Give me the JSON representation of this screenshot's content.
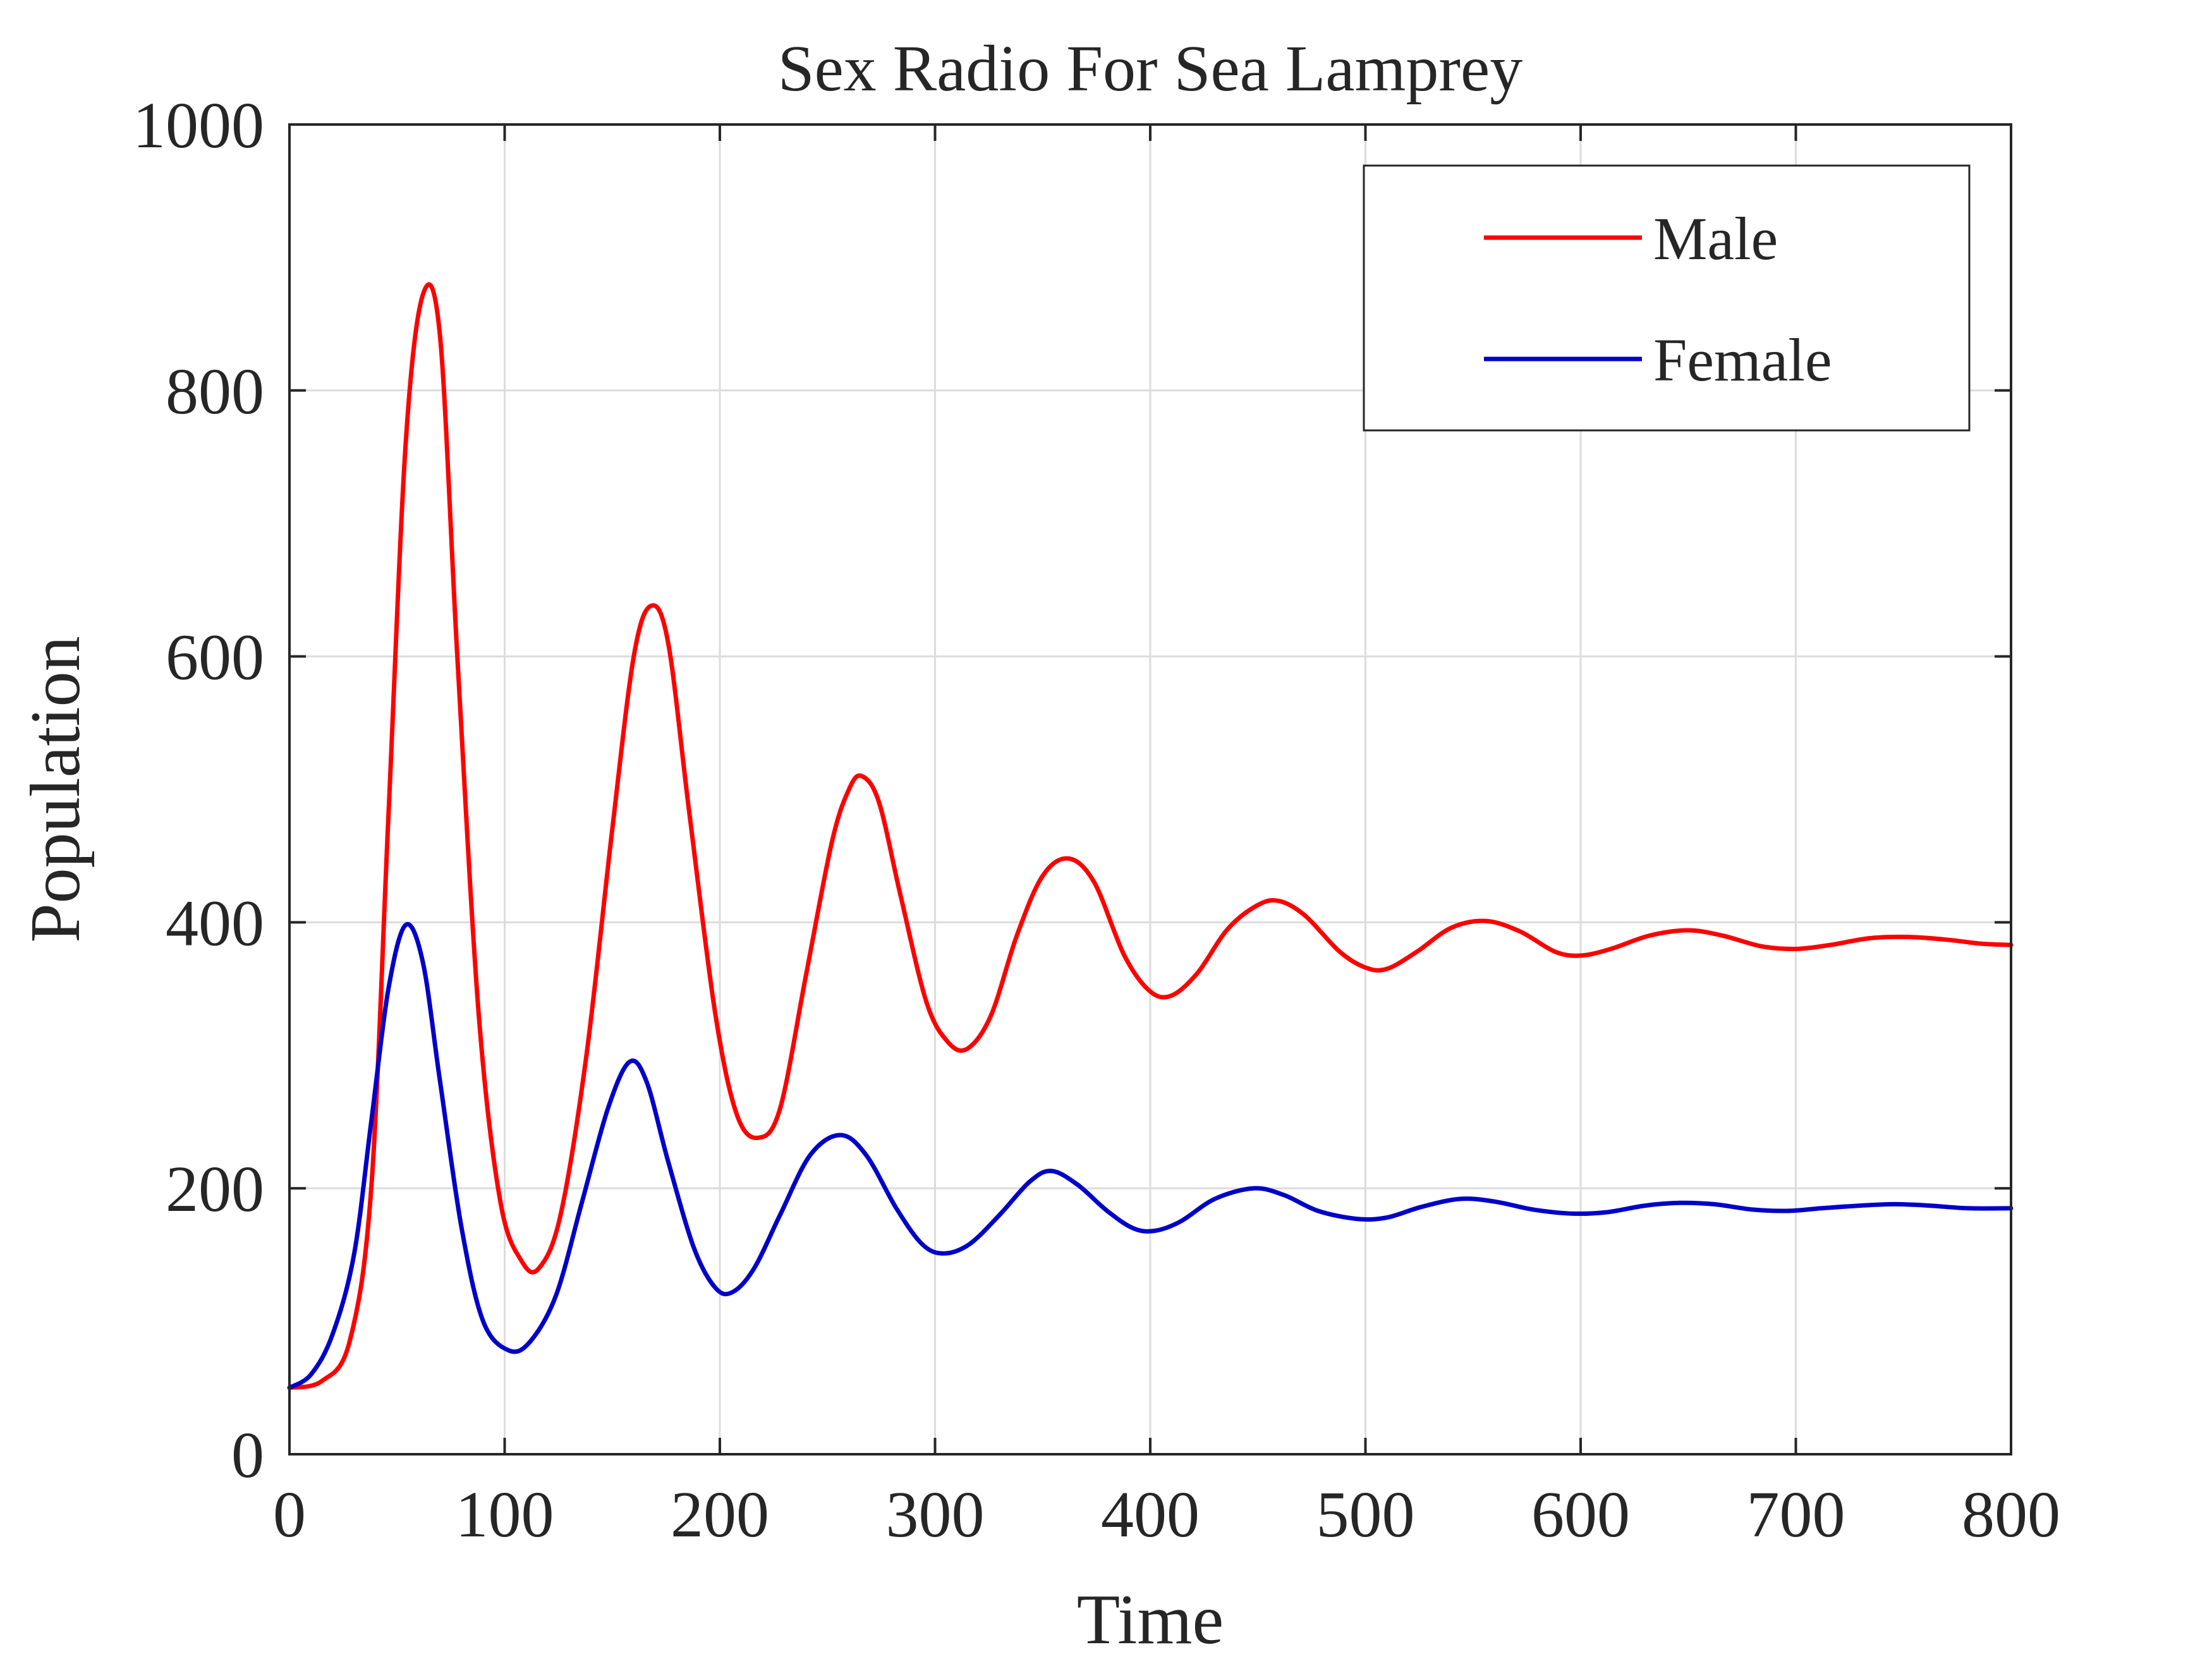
{
  "chart_data": {
    "type": "line",
    "title": "Sex Radio For Sea Lamprey",
    "xlabel": "Time",
    "ylabel": "Population",
    "xlim": [
      0,
      800
    ],
    "ylim": [
      0,
      1000
    ],
    "xticks": [
      0,
      100,
      200,
      300,
      400,
      500,
      600,
      700,
      800
    ],
    "yticks": [
      0,
      200,
      400,
      600,
      800,
      1000
    ],
    "grid": true,
    "legend_position": "top-right",
    "series": [
      {
        "name": "Male",
        "color": "#ff0000",
        "points": [
          [
            0,
            50
          ],
          [
            15,
            55
          ],
          [
            28,
            85
          ],
          [
            38,
            200
          ],
          [
            46,
            480
          ],
          [
            54,
            760
          ],
          [
            62,
            872
          ],
          [
            70,
            840
          ],
          [
            78,
            600
          ],
          [
            88,
            330
          ],
          [
            98,
            190
          ],
          [
            108,
            145
          ],
          [
            116,
            140
          ],
          [
            126,
            180
          ],
          [
            138,
            300
          ],
          [
            150,
            470
          ],
          [
            160,
            600
          ],
          [
            168,
            638
          ],
          [
            176,
            610
          ],
          [
            186,
            480
          ],
          [
            198,
            330
          ],
          [
            208,
            255
          ],
          [
            218,
            238
          ],
          [
            228,
            260
          ],
          [
            240,
            360
          ],
          [
            252,
            460
          ],
          [
            260,
            500
          ],
          [
            266,
            510
          ],
          [
            274,
            490
          ],
          [
            284,
            420
          ],
          [
            296,
            340
          ],
          [
            306,
            310
          ],
          [
            315,
            305
          ],
          [
            326,
            330
          ],
          [
            338,
            390
          ],
          [
            350,
            435
          ],
          [
            362,
            448
          ],
          [
            374,
            430
          ],
          [
            388,
            375
          ],
          [
            400,
            348
          ],
          [
            410,
            345
          ],
          [
            422,
            362
          ],
          [
            436,
            395
          ],
          [
            450,
            413
          ],
          [
            460,
            416
          ],
          [
            472,
            405
          ],
          [
            488,
            378
          ],
          [
            500,
            366
          ],
          [
            510,
            365
          ],
          [
            524,
            378
          ],
          [
            540,
            396
          ],
          [
            556,
            401
          ],
          [
            572,
            393
          ],
          [
            588,
            378
          ],
          [
            600,
            375
          ],
          [
            614,
            380
          ],
          [
            632,
            390
          ],
          [
            650,
            394
          ],
          [
            666,
            390
          ],
          [
            684,
            382
          ],
          [
            700,
            380
          ],
          [
            716,
            383
          ],
          [
            734,
            388
          ],
          [
            752,
            389
          ],
          [
            770,
            387
          ],
          [
            786,
            384
          ],
          [
            800,
            383
          ]
        ]
      },
      {
        "name": "Female",
        "color": "#0000c8",
        "points": [
          [
            0,
            50
          ],
          [
            10,
            60
          ],
          [
            20,
            90
          ],
          [
            30,
            150
          ],
          [
            38,
            250
          ],
          [
            46,
            350
          ],
          [
            54,
            398
          ],
          [
            62,
            370
          ],
          [
            70,
            280
          ],
          [
            80,
            170
          ],
          [
            90,
            100
          ],
          [
            102,
            78
          ],
          [
            112,
            85
          ],
          [
            124,
            120
          ],
          [
            136,
            190
          ],
          [
            148,
            260
          ],
          [
            158,
            295
          ],
          [
            166,
            280
          ],
          [
            176,
            220
          ],
          [
            188,
            155
          ],
          [
            198,
            125
          ],
          [
            206,
            122
          ],
          [
            216,
            140
          ],
          [
            228,
            180
          ],
          [
            242,
            225
          ],
          [
            256,
            240
          ],
          [
            268,
            225
          ],
          [
            282,
            185
          ],
          [
            294,
            158
          ],
          [
            304,
            151
          ],
          [
            316,
            158
          ],
          [
            330,
            180
          ],
          [
            344,
            205
          ],
          [
            354,
            213
          ],
          [
            366,
            203
          ],
          [
            380,
            183
          ],
          [
            392,
            170
          ],
          [
            402,
            168
          ],
          [
            414,
            175
          ],
          [
            430,
            192
          ],
          [
            448,
            200
          ],
          [
            462,
            195
          ],
          [
            478,
            183
          ],
          [
            496,
            177
          ],
          [
            510,
            178
          ],
          [
            526,
            186
          ],
          [
            544,
            192
          ],
          [
            560,
            190
          ],
          [
            578,
            184
          ],
          [
            596,
            181
          ],
          [
            612,
            182
          ],
          [
            630,
            187
          ],
          [
            646,
            189
          ],
          [
            662,
            188
          ],
          [
            680,
            184
          ],
          [
            696,
            183
          ],
          [
            712,
            185
          ],
          [
            730,
            187
          ],
          [
            746,
            188
          ],
          [
            762,
            187
          ],
          [
            780,
            185
          ],
          [
            800,
            185
          ]
        ]
      }
    ]
  }
}
